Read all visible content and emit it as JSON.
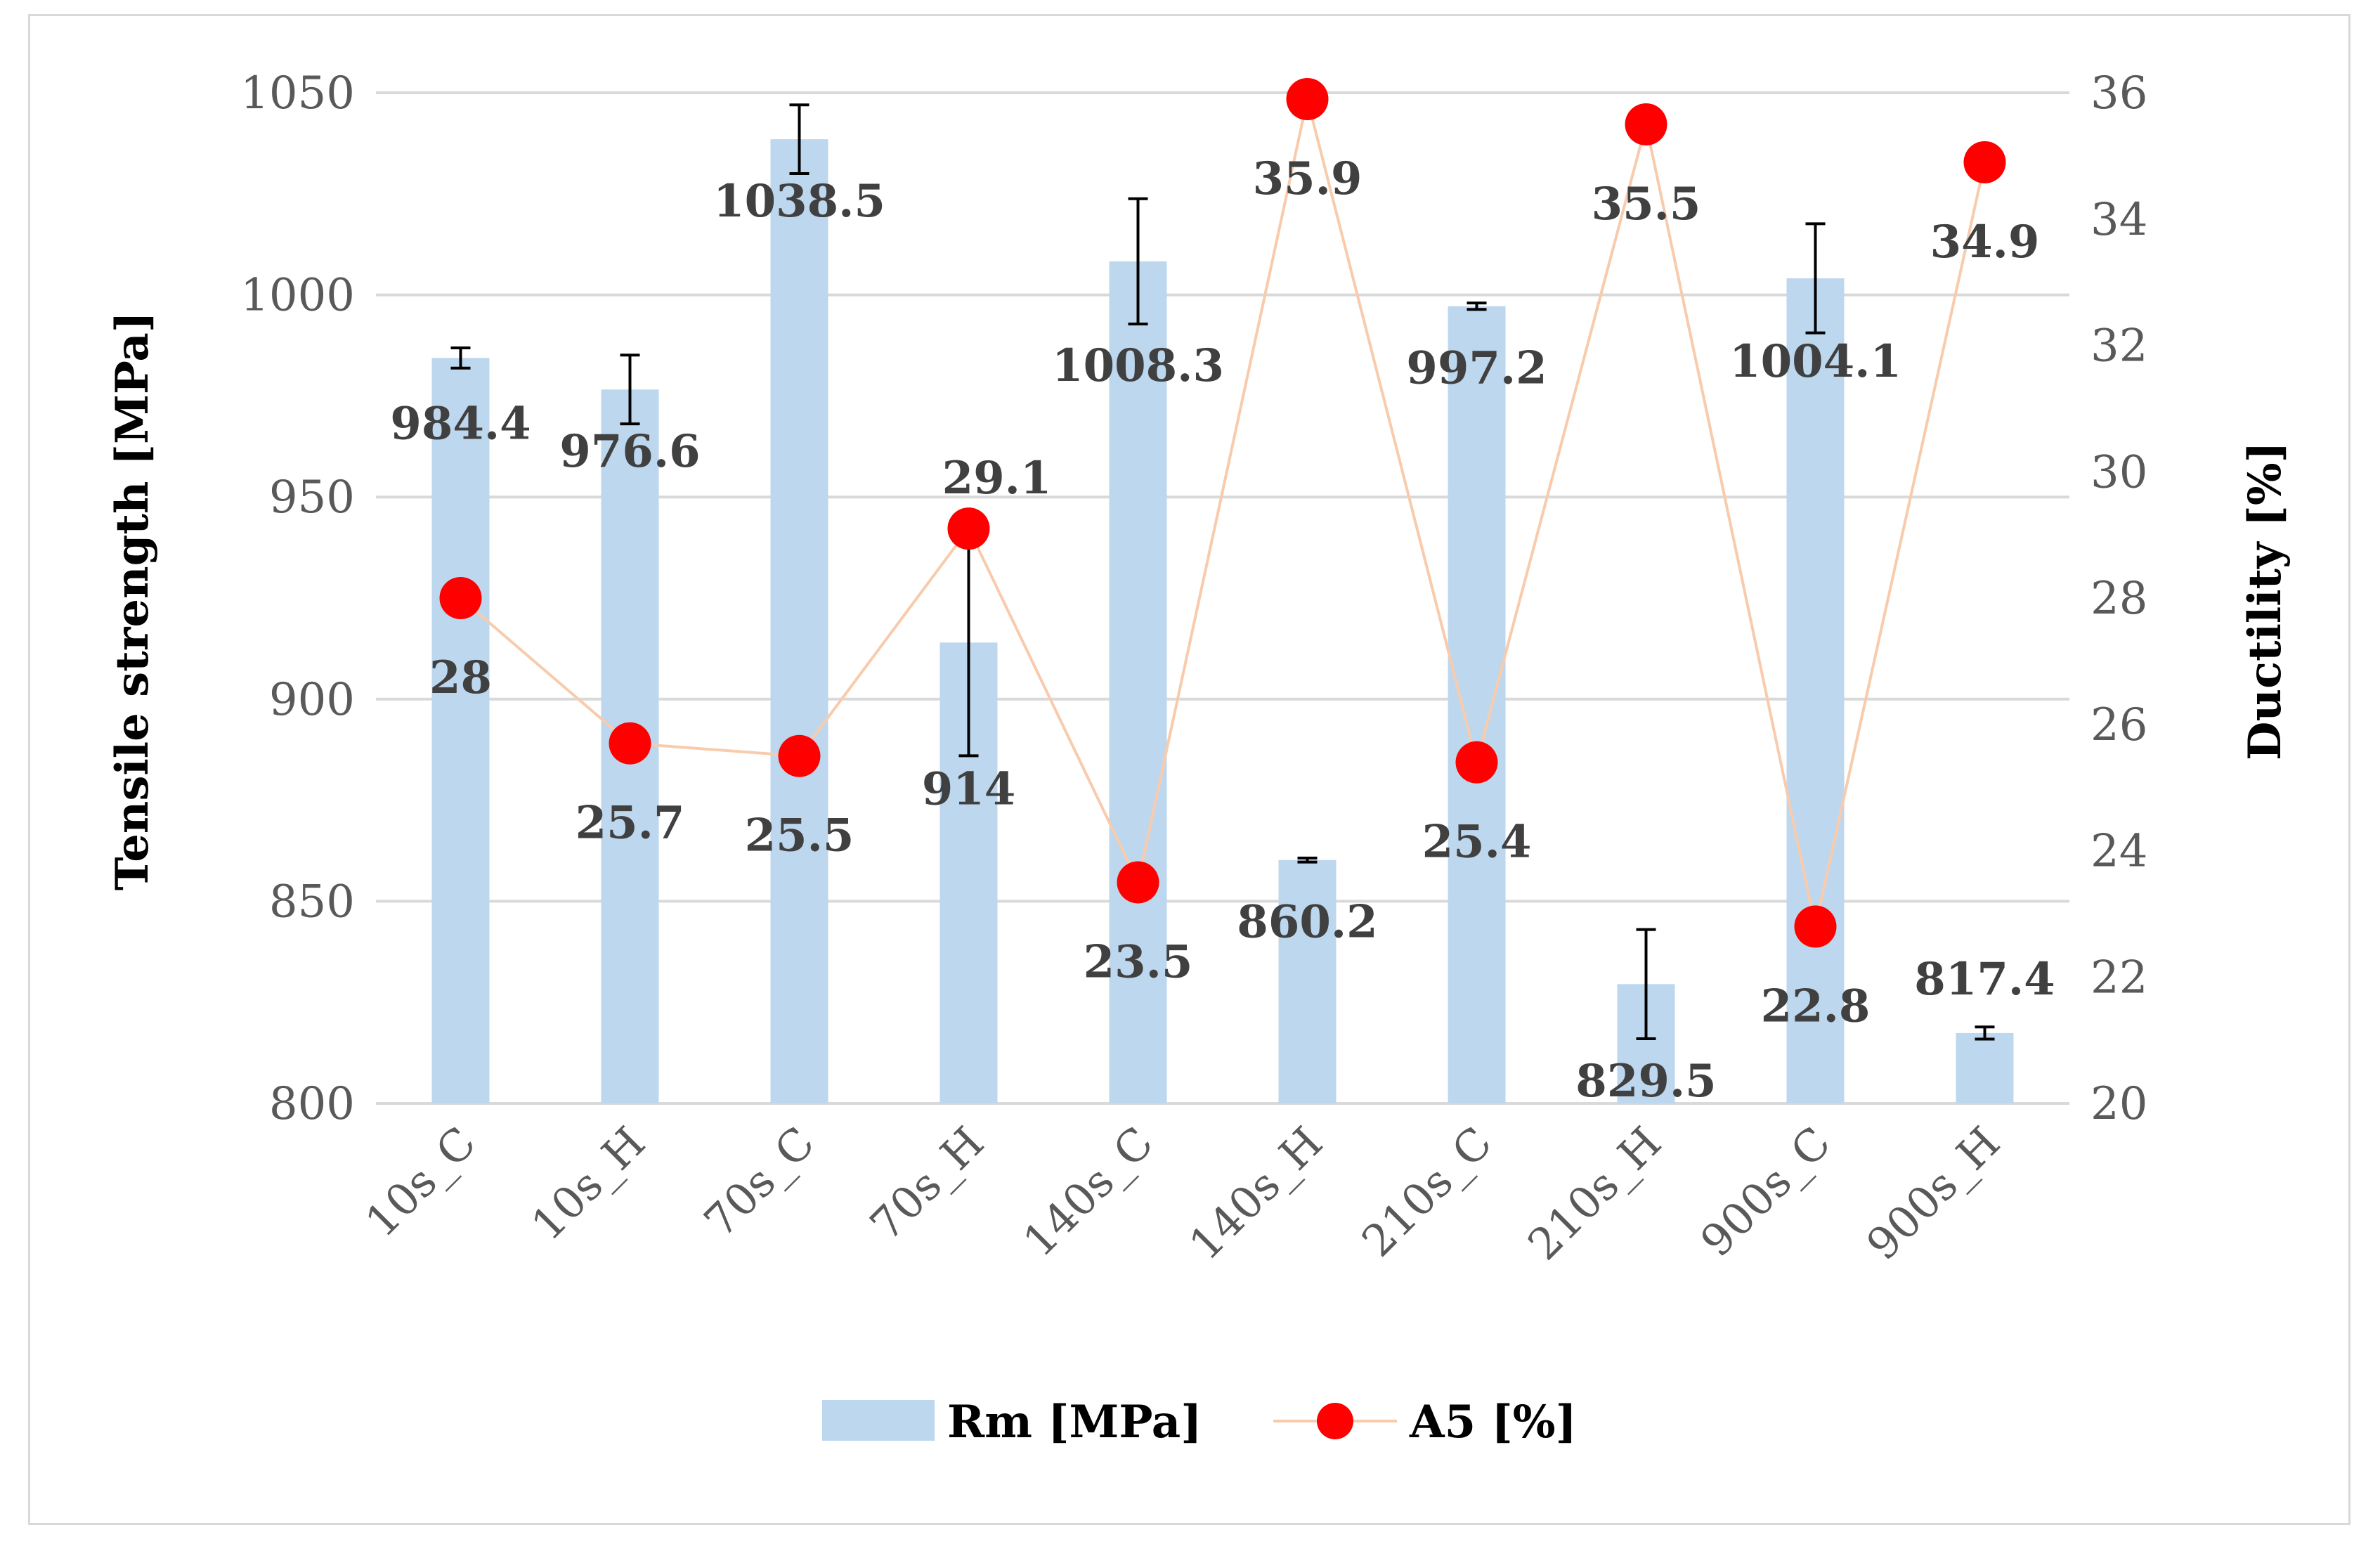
{
  "chart_data": {
    "type": "bar+line",
    "categories": [
      "10s_C",
      "10s_H",
      "70s_C",
      "70s_H",
      "140s_C",
      "140s_H",
      "210s_C",
      "210s_H",
      "900s_C",
      "900s_H"
    ],
    "series": [
      {
        "name": "Rm [MPa]",
        "type": "bar",
        "axis": "left",
        "color": "#bdd7ee",
        "values": [
          984.4,
          976.6,
          1038.5,
          914,
          1008.3,
          860.2,
          997.2,
          829.5,
          1004.1,
          817.4
        ],
        "labels": [
          "984.4",
          "976.6",
          "1038.5",
          "914",
          "1008.3",
          "860.2",
          "997.2",
          "829.5",
          "1004.1",
          "817.4"
        ],
        "error": [
          2.5,
          8.5,
          8.5,
          28,
          15.5,
          0.5,
          0.8,
          13.5,
          13.5,
          1.5
        ]
      },
      {
        "name": "A5 [%]",
        "type": "line",
        "axis": "right",
        "color": "#ff0000",
        "line_color": "#f8cbad",
        "values": [
          28,
          25.7,
          25.5,
          29.1,
          23.5,
          35.9,
          25.4,
          35.5,
          22.8,
          34.9
        ],
        "labels": [
          "28",
          "25.7",
          "25.5",
          "29.1",
          "23.5",
          "35.9",
          "25.4",
          "35.5",
          "22.8",
          "34.9"
        ]
      }
    ],
    "ylabel": "Tensile strength [MPa]",
    "y2label": "Ductility [%]",
    "ylim": [
      800,
      1050
    ],
    "y2lim": [
      20,
      36
    ],
    "yticks": [
      "800",
      "850",
      "900",
      "950",
      "1000",
      "1050"
    ],
    "y2ticks": [
      "20",
      "22",
      "24",
      "26",
      "28",
      "30",
      "32",
      "34",
      "36"
    ],
    "grid": true,
    "legend": "bottom-center"
  }
}
